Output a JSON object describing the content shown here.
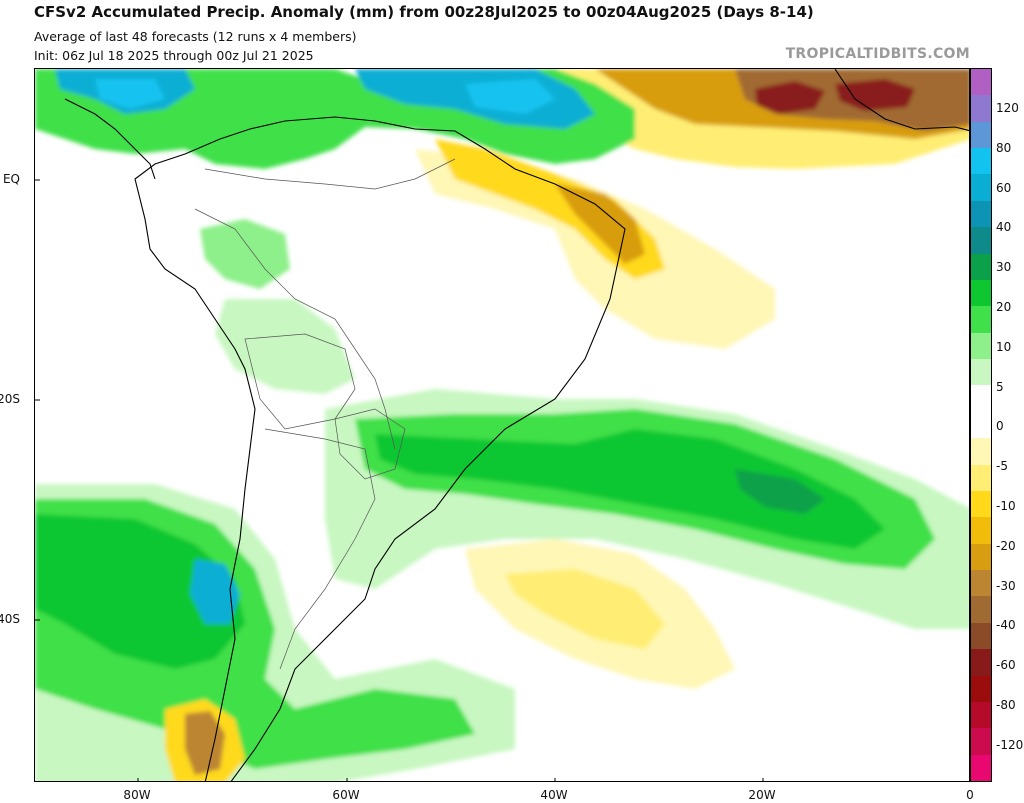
{
  "header": {
    "title": "CFSv2 Accumulated Precip. Anomaly (mm) from 00z28Jul2025 to 00z04Aug2025 (Days 8-14)",
    "subtitle1": "Average of last 48 forecasts (12 runs x 4 members)",
    "subtitle2": "Init: 06z Jul 18 2025 through 00z Jul 21 2025",
    "credit": "TROPICALTIDBITS.COM"
  },
  "axes": {
    "lat_labels": [
      "EQ",
      "20S",
      "40S"
    ],
    "lon_labels": [
      "80W",
      "60W",
      "40W",
      "20W",
      "0"
    ]
  },
  "colorbar": {
    "colors": [
      "#b05fc3",
      "#8f78cf",
      "#5e97d8",
      "#12c3f0",
      "#0aaed4",
      "#0d94b4",
      "#0e8a8a",
      "#0aa14a",
      "#0ec730",
      "#3fe04a",
      "#8ef08a",
      "#c8f7c1",
      "#ffffff",
      "#ffffff",
      "#fff7b6",
      "#ffee73",
      "#ffd91a",
      "#f2bd0a",
      "#d89d10",
      "#bc8531",
      "#a06a33",
      "#8c4b28",
      "#891a1a",
      "#9b0d0d",
      "#b50a2a",
      "#cc0a4e",
      "#e8086f"
    ],
    "labels": [
      "120",
      "80",
      "60",
      "40",
      "30",
      "20",
      "10",
      "5",
      "0",
      "-5",
      "-10",
      "-20",
      "-30",
      "-40",
      "-60",
      "-80",
      "-120"
    ]
  }
}
